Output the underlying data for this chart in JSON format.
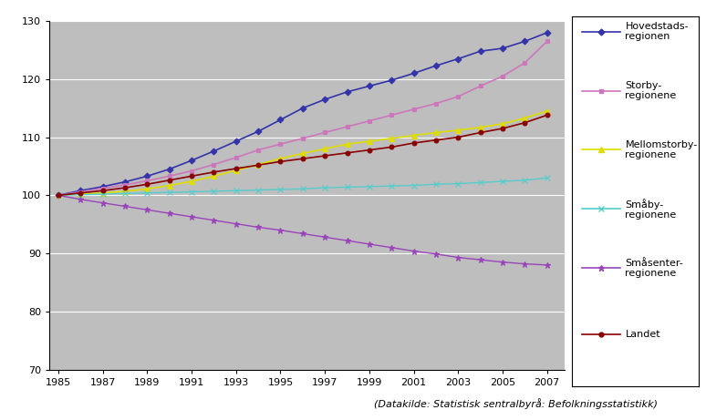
{
  "years": [
    1985,
    1986,
    1987,
    1988,
    1989,
    1990,
    1991,
    1992,
    1993,
    1994,
    1995,
    1996,
    1997,
    1998,
    1999,
    2000,
    2001,
    2002,
    2003,
    2004,
    2005,
    2006,
    2007
  ],
  "series": [
    {
      "label": "Hovedstads-\nregionen",
      "color": "#3333AA",
      "marker": "D",
      "markersize": 3.5,
      "linewidth": 1.2,
      "values": [
        100,
        100.8,
        101.5,
        102.3,
        103.3,
        104.5,
        106.0,
        107.6,
        109.3,
        111.0,
        113.0,
        115.0,
        116.5,
        117.8,
        118.8,
        119.8,
        121.0,
        122.3,
        123.5,
        124.8,
        125.3,
        126.5,
        128.0
      ]
    },
    {
      "label": "Storby-\nregionene",
      "color": "#CC77BB",
      "marker": "s",
      "markersize": 3.5,
      "linewidth": 1.2,
      "values": [
        100,
        100.6,
        101.2,
        101.8,
        102.5,
        103.3,
        104.2,
        105.3,
        106.5,
        107.8,
        108.8,
        109.8,
        110.8,
        111.8,
        112.8,
        113.8,
        114.8,
        115.8,
        117.0,
        118.8,
        120.5,
        122.8,
        126.5
      ]
    },
    {
      "label": "Mellomstorby-\nregionene",
      "color": "#DDDD00",
      "marker": "^",
      "markersize": 4,
      "linewidth": 1.2,
      "values": [
        100,
        100.2,
        100.4,
        100.7,
        101.1,
        101.7,
        102.4,
        103.3,
        104.3,
        105.3,
        106.3,
        107.2,
        108.0,
        108.8,
        109.3,
        109.8,
        110.3,
        110.8,
        111.2,
        111.7,
        112.3,
        113.3,
        114.5
      ]
    },
    {
      "label": "Småby-\nregionene",
      "color": "#55CCCC",
      "marker": "x",
      "markersize": 4.5,
      "linewidth": 1.0,
      "values": [
        100,
        100.1,
        100.2,
        100.3,
        100.4,
        100.5,
        100.6,
        100.7,
        100.8,
        100.9,
        101.0,
        101.1,
        101.3,
        101.4,
        101.5,
        101.6,
        101.7,
        101.9,
        102.0,
        102.2,
        102.4,
        102.6,
        103.0
      ]
    },
    {
      "label": "Småsenter-\nregionene",
      "color": "#9944BB",
      "marker": "*",
      "markersize": 5,
      "linewidth": 1.0,
      "values": [
        100,
        99.3,
        98.7,
        98.1,
        97.5,
        96.9,
        96.3,
        95.7,
        95.1,
        94.5,
        94.0,
        93.4,
        92.8,
        92.2,
        91.6,
        91.0,
        90.4,
        89.9,
        89.3,
        88.9,
        88.5,
        88.2,
        88.0
      ]
    },
    {
      "label": "Landet",
      "color": "#880000",
      "marker": "o",
      "markersize": 3.5,
      "linewidth": 1.2,
      "values": [
        100,
        100.4,
        100.8,
        101.3,
        101.9,
        102.6,
        103.3,
        104.0,
        104.6,
        105.2,
        105.8,
        106.3,
        106.8,
        107.3,
        107.8,
        108.3,
        109.0,
        109.5,
        110.0,
        110.8,
        111.5,
        112.5,
        113.8
      ]
    }
  ],
  "ylim": [
    70,
    130
  ],
  "yticks": [
    70,
    80,
    90,
    100,
    110,
    120,
    130
  ],
  "xtick_years": [
    1985,
    1987,
    1989,
    1991,
    1993,
    1995,
    1997,
    1999,
    2001,
    2003,
    2005,
    2007
  ],
  "plot_bg_color": "#BEBEBE",
  "caption": "(Datakilde: Statistisk sentralbyrå: Befolkningsstatistikk)",
  "caption_fontsize": 8,
  "tick_fontsize": 8,
  "legend_fontsize": 8
}
